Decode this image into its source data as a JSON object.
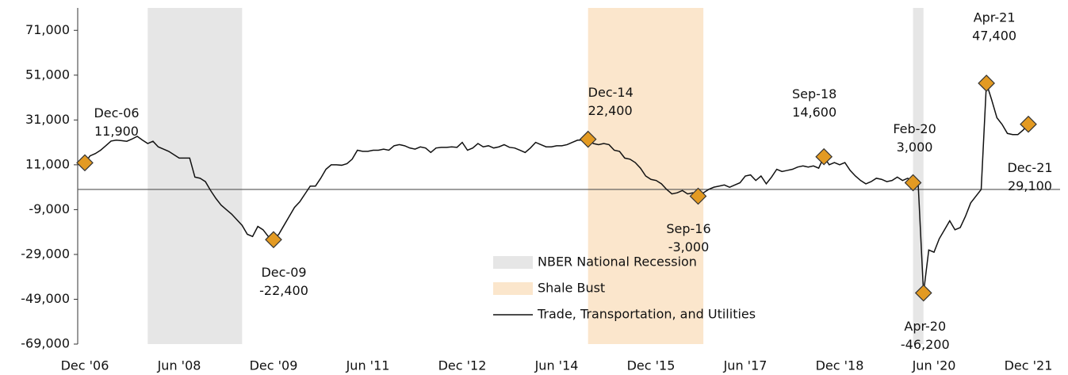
{
  "chart_data": {
    "type": "line",
    "categories": [
      "Dec '06",
      null,
      null,
      null,
      null,
      null,
      null,
      null,
      null,
      null,
      null,
      null,
      null,
      null,
      null,
      null,
      null,
      null,
      "Jun '08",
      null,
      null,
      null,
      null,
      null,
      null,
      null,
      null,
      null,
      null,
      null,
      null,
      null,
      null,
      null,
      null,
      null,
      "Dec '09",
      null,
      null,
      null,
      null,
      null,
      null,
      null,
      null,
      null,
      null,
      null,
      null,
      null,
      null,
      null,
      null,
      null,
      "Jun '11",
      null,
      null,
      null,
      null,
      null,
      null,
      null,
      null,
      null,
      null,
      null,
      null,
      null,
      null,
      null,
      null,
      null,
      "Dec '12",
      null,
      null,
      null,
      null,
      null,
      null,
      null,
      null,
      null,
      null,
      null,
      null,
      null,
      null,
      null,
      null,
      null,
      "Jun '14",
      null,
      null,
      null,
      null,
      null,
      null,
      null,
      null,
      null,
      null,
      null,
      null,
      null,
      null,
      null,
      null,
      null,
      "Dec '15",
      null,
      null,
      null,
      null,
      null,
      null,
      null,
      null,
      null,
      null,
      null,
      null,
      null,
      null,
      null,
      null,
      null,
      "Jun '17",
      null,
      null,
      null,
      null,
      null,
      null,
      null,
      null,
      null,
      null,
      null,
      null,
      null,
      null,
      null,
      null,
      null,
      "Dec '18",
      null,
      null,
      null,
      null,
      null,
      null,
      null,
      null,
      null,
      null,
      null,
      null,
      null,
      null,
      null,
      null,
      null,
      "Jun '20",
      null,
      null,
      null,
      null,
      null,
      null,
      null,
      null,
      null,
      null,
      null,
      null,
      null,
      null,
      null,
      null,
      null,
      "Dec '21"
    ],
    "series": [
      {
        "name": "Trade, Transportation, and Utilities",
        "color": "#111111",
        "values": [
          11900,
          15000,
          16000,
          17500,
          19500,
          21600,
          22000,
          21800,
          21500,
          22500,
          23700,
          22000,
          20500,
          21500,
          19000,
          18000,
          17000,
          15500,
          14000,
          14000,
          14000,
          5500,
          5000,
          3500,
          -500,
          -4000,
          -7000,
          -9000,
          -11000,
          -13500,
          -16000,
          -20000,
          -21000,
          -16500,
          -18000,
          -21000,
          -22400,
          -20000,
          -16000,
          -12000,
          -8000,
          -5500,
          -2000,
          1500,
          1500,
          5000,
          9000,
          11000,
          11000,
          10800,
          11500,
          13500,
          17500,
          17000,
          17000,
          17500,
          17500,
          18000,
          17500,
          19500,
          20000,
          19500,
          18500,
          18000,
          19000,
          18500,
          16500,
          18500,
          18800,
          18800,
          19000,
          18800,
          21000,
          17500,
          18500,
          20500,
          19000,
          19500,
          18500,
          19000,
          20000,
          18800,
          18500,
          17500,
          16500,
          18500,
          21000,
          20000,
          19000,
          19000,
          19500,
          19500,
          20000,
          21000,
          22000,
          22000,
          22400,
          20500,
          20000,
          20500,
          20000,
          17500,
          17000,
          14000,
          13500,
          12000,
          9500,
          6000,
          4500,
          4000,
          2500,
          0,
          -2000,
          -1500,
          -500,
          -2000,
          -1500,
          -3000,
          -1500,
          0,
          1000,
          1500,
          2000,
          1000,
          2000,
          3000,
          6000,
          6500,
          4000,
          6000,
          2500,
          5500,
          9000,
          8000,
          8500,
          9000,
          10000,
          10500,
          10000,
          10500,
          9500,
          14600,
          11000,
          12000,
          11000,
          12000,
          8500,
          6000,
          4000,
          2500,
          3500,
          5000,
          4500,
          3500,
          4000,
          5500,
          4000,
          5000,
          3000,
          1500,
          -46200,
          -27000,
          -28000,
          -22000,
          -18000,
          -14000,
          -18000,
          -17000,
          -12000,
          -6000,
          -3000,
          0,
          47400,
          40000,
          32000,
          29000,
          25000,
          24500,
          24500,
          26500,
          29100
        ]
      }
    ],
    "regions": [
      {
        "name": "NBER National Recession",
        "color": "#e6e6e6",
        "spans": [
          [
            12,
            30
          ],
          [
            158,
            160
          ]
        ]
      },
      {
        "name": "Shale Bust",
        "color": "#fbe6cc",
        "spans": [
          [
            96,
            118
          ]
        ]
      }
    ],
    "annotations": [
      {
        "index": 0,
        "label": "Dec-06",
        "value_label": "11,900"
      },
      {
        "index": 36,
        "label": "Dec-09",
        "value_label": "-22,400"
      },
      {
        "index": 96,
        "label": "Dec-14",
        "value_label": "22,400"
      },
      {
        "index": 117,
        "label": "Sep-16",
        "value_label": "-3,000"
      },
      {
        "index": 141,
        "label": "Sep-18",
        "value_label": "14,600"
      },
      {
        "index": 158,
        "label": "Feb-20",
        "value_label": "3,000"
      },
      {
        "index": 160,
        "label": "Apr-20",
        "value_label": "-46,200"
      },
      {
        "index": 172,
        "label": "Apr-21",
        "value_label": "47,400"
      },
      {
        "index": 180,
        "label": "Dec-21",
        "value_label": "29,100"
      }
    ],
    "marker_color": "#e39a22",
    "ylim": [
      -69000,
      81000
    ],
    "yticks": [
      {
        "value": -69000,
        "label": "-69,000"
      },
      {
        "value": -49000,
        "label": "-49,000"
      },
      {
        "value": -29000,
        "label": "-29,000"
      },
      {
        "value": -9000,
        "label": "-9,000"
      },
      {
        "value": 11000,
        "label": "11,000"
      },
      {
        "value": 31000,
        "label": "31,000"
      },
      {
        "value": 51000,
        "label": "51,000"
      },
      {
        "value": 71000,
        "label": "71,000"
      }
    ],
    "grid": false
  }
}
